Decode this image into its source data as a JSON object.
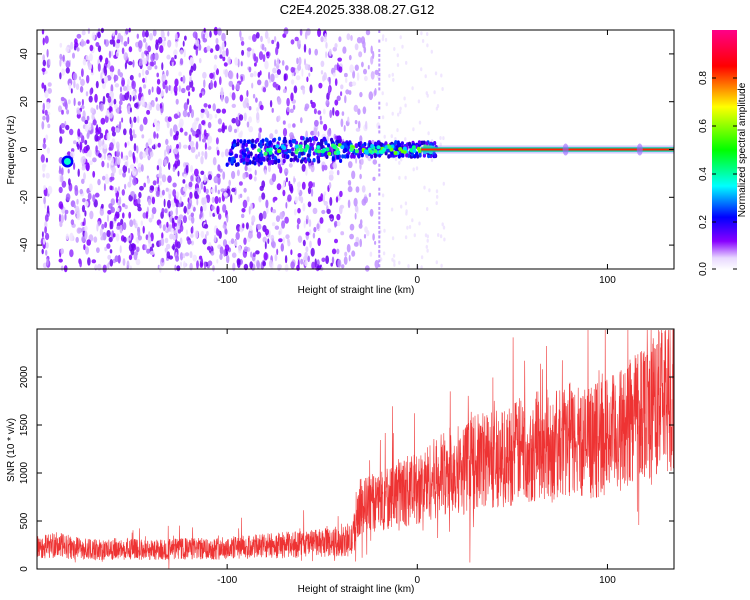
{
  "title": "C2E4.2025.338.08.27.G12",
  "chart_data": [
    {
      "type": "heatmap",
      "name": "spectrogram",
      "xlabel": "Height of straight line (km)",
      "ylabel": "Frequency (Hz)",
      "xlim": [
        -200,
        135
      ],
      "ylim": [
        -50,
        50
      ],
      "xticks": [
        -100,
        0,
        100
      ],
      "xtick_labels": [
        "-100",
        "0",
        "100"
      ],
      "yticks": [
        -40,
        -20,
        0,
        20,
        40
      ],
      "ytick_labels": [
        "-40",
        "-20",
        "0",
        "20",
        "40"
      ],
      "colorbar": {
        "label": "Normalized spectral amplitude",
        "range": [
          0,
          1
        ],
        "ticks": [
          0.0,
          0.2,
          0.4,
          0.6,
          0.8
        ],
        "tick_labels": [
          "0.0",
          "0.2",
          "0.4",
          "0.6",
          "0.8"
        ],
        "colors": [
          "#ffffff",
          "#8800ff",
          "#0000ff",
          "#00ffff",
          "#00ff00",
          "#ffff00",
          "#ff0000",
          "#ff0088"
        ]
      },
      "features": {
        "noise_region_km": [
          -197,
          -20
        ],
        "signal_line_freq_hz": 0,
        "signal_spread_km": [
          -100,
          10
        ],
        "narrow_line_km": [
          10,
          135
        ],
        "bright_blob_km": -184
      }
    },
    {
      "type": "line",
      "name": "snr",
      "xlabel": "Height of straight line (km)",
      "ylabel": "SNR (10 * v/v)",
      "xlim": [
        -200,
        135
      ],
      "ylim": [
        0,
        2500
      ],
      "xticks": [
        -100,
        0,
        100
      ],
      "xtick_labels": [
        "-100",
        "0",
        "100"
      ],
      "yticks": [
        0,
        500,
        1000,
        1500,
        2000
      ],
      "ytick_labels": [
        "0",
        "500",
        "1000",
        "1500",
        "2000"
      ],
      "color": "#ee3333",
      "series": [
        {
          "name": "SNR",
          "x": [
            -200,
            -190,
            -180,
            -170,
            -160,
            -150,
            -140,
            -130,
            -120,
            -110,
            -100,
            -90,
            -80,
            -70,
            -60,
            -50,
            -40,
            -34,
            -32,
            -30,
            -25,
            -20,
            -15,
            -10,
            -5,
            0,
            5,
            10,
            15,
            20,
            25,
            30,
            35,
            40,
            45,
            50,
            55,
            60,
            65,
            70,
            75,
            80,
            85,
            90,
            95,
            100,
            105,
            110,
            115,
            120,
            125,
            130,
            135
          ],
          "values": [
            230,
            250,
            220,
            200,
            210,
            205,
            200,
            205,
            210,
            210,
            220,
            225,
            240,
            250,
            260,
            270,
            280,
            300,
            550,
            650,
            680,
            700,
            750,
            800,
            820,
            820,
            900,
            950,
            1000,
            1050,
            1050,
            1100,
            1150,
            1150,
            1150,
            1200,
            1250,
            1250,
            1300,
            1250,
            1300,
            1350,
            1350,
            1300,
            1350,
            1400,
            1400,
            1500,
            1650,
            1700,
            1700,
            1800,
            1850
          ]
        }
      ]
    }
  ]
}
